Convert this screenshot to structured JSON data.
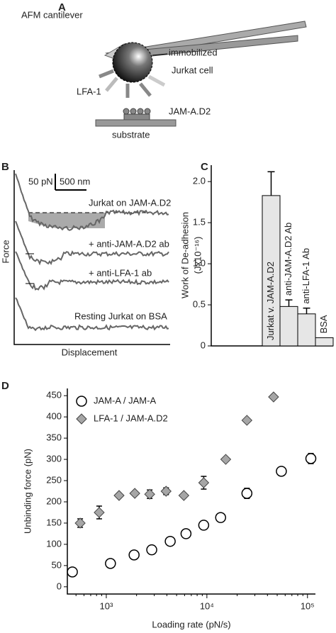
{
  "panel_a": {
    "label": "A",
    "cantilever": "AFM cantilever",
    "cell_line1": "immobilized",
    "cell_line2": "Jurkat cell",
    "receptor": "LFA-1",
    "ligand": "JAM-A.D2",
    "substrate": "substrate"
  },
  "panel_b": {
    "label": "B",
    "scale_force": "50 pN",
    "scale_distance": "500 nm",
    "traces": [
      "Jurkat on JAM-A.D2",
      "+ anti-JAM-A.D2 ab",
      "+ anti-LFA-1 ab",
      "Resting Jurkat on BSA"
    ],
    "y_label": "Force",
    "x_label": "Displacement"
  },
  "chart_data": [
    {
      "type": "bar",
      "panel_label": "C",
      "y_label": [
        "Work of De-adhesion",
        "(Jx10⁻¹⁶)"
      ],
      "categories": [
        "Jurkat v. JAM-A.D2",
        "anti-JAM-A.D2 Ab",
        "anti-LFA-1 Ab",
        "BSA"
      ],
      "values": [
        1.83,
        0.48,
        0.39,
        0.1
      ],
      "errors": [
        0.29,
        0.08,
        0.07,
        0
      ],
      "color": "#e6e6e6",
      "ylim": [
        0,
        2.2
      ],
      "yticks": [
        0,
        0.5,
        {
          "value": 1,
          "label": "1.0"
        },
        1.5,
        {
          "value": 2,
          "label": "2.0"
        }
      ]
    },
    {
      "type": "scatter",
      "panel_label": "D",
      "x_label": "Loading rate (pN/s)",
      "y_label": "Unbinding force (pN)",
      "xlog": true,
      "xlim": [
        410,
        120000
      ],
      "ylim": [
        -17,
        467
      ],
      "xticks": [
        {
          "value": 1000,
          "label": "10³"
        },
        {
          "value": 10000,
          "label": "10⁴"
        },
        {
          "value": 100000,
          "label": "10⁵"
        }
      ],
      "yticks": [
        0,
        50,
        100,
        150,
        200,
        250,
        300,
        350,
        400,
        450
      ],
      "legend": "upper left",
      "series": [
        {
          "name": "JAM-A / JAM-A",
          "color": "#ffffff",
          "marker": "circle",
          "x": [
            460,
            1100,
            1890,
            2830,
            4320,
            6200,
            9300,
            13700,
            25000,
            55000,
            108000
          ],
          "values": [
            35,
            55,
            75,
            87,
            107,
            125,
            145,
            163,
            220,
            272,
            302
          ],
          "errors": [
            0,
            0,
            0,
            0,
            0,
            0,
            0,
            0,
            12,
            0,
            12
          ]
        },
        {
          "name": "LFA-1 / JAM-A.D2",
          "color": "#a6a6a6",
          "marker": "diamond",
          "x": [
            550,
            850,
            1340,
            1920,
            2700,
            3930,
            5900,
            9300,
            15400,
            25000,
            46000
          ],
          "values": [
            150,
            175,
            215,
            220,
            218,
            225,
            215,
            245,
            300,
            392,
            447
          ],
          "errors": [
            10,
            15,
            0,
            0,
            10,
            8,
            0,
            15,
            0,
            0,
            0
          ]
        }
      ]
    }
  ]
}
